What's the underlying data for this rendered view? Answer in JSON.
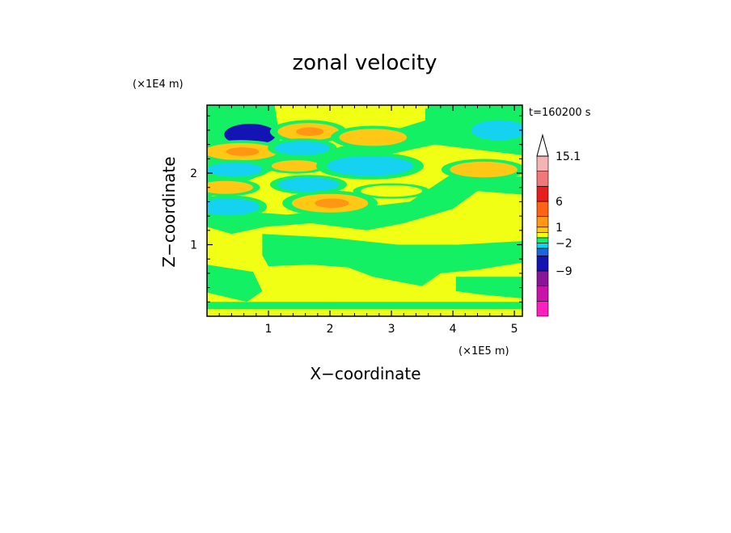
{
  "chart_data": {
    "type": "heatmap",
    "title": "zonal velocity",
    "xlabel": "X−coordinate",
    "ylabel": "Z−coordinate",
    "x_scale_label": "(×1E5 m)",
    "y_scale_label": "(×1E4 m)",
    "time_label": "t=160200 s",
    "xlim": [
      0,
      5.13
    ],
    "ylim": [
      0,
      2.95
    ],
    "x_ticks": [
      1,
      2,
      3,
      4,
      5
    ],
    "x_tick_labels": [
      "1",
      "2",
      "3",
      "4",
      "5"
    ],
    "y_ticks": [
      1,
      2
    ],
    "y_tick_labels": [
      "1",
      "2"
    ],
    "colorbar": {
      "levels": [
        {
          "color": "#ff1ebe"
        },
        {
          "color": "#c814aa"
        },
        {
          "color": "#8c1496"
        },
        {
          "color": "#1414b4"
        },
        {
          "color": "#1e64dc"
        },
        {
          "color": "#14d2f0"
        },
        {
          "color": "#14f064"
        },
        {
          "color": "#f0ff14"
        },
        {
          "color": "#ffc814"
        },
        {
          "color": "#ff9614"
        },
        {
          "color": "#ff6414"
        },
        {
          "color": "#e61e1e"
        },
        {
          "color": "#f07878"
        },
        {
          "color": "#f5b4b4"
        }
      ],
      "labels": [
        {
          "text": "15.1",
          "value": 15.1
        },
        {
          "text": "6",
          "value": 6
        },
        {
          "text": "1",
          "value": 1
        },
        {
          "text": "−2",
          "value": -2
        },
        {
          "text": "−9",
          "value": -9
        }
      ]
    },
    "features": [
      {
        "x": 0.7,
        "z": 2.54,
        "rx": 0.42,
        "rz": 0.15,
        "v": -10
      },
      {
        "x": 0.55,
        "z": 2.3,
        "rx": 0.6,
        "rz": 0.12,
        "v": 4
      },
      {
        "x": 0.45,
        "z": 2.05,
        "rx": 0.45,
        "rz": 0.1,
        "v": -3
      },
      {
        "x": 0.3,
        "z": 1.8,
        "rx": 0.45,
        "rz": 0.09,
        "v": 3
      },
      {
        "x": 0.35,
        "z": 1.53,
        "rx": 0.5,
        "rz": 0.12,
        "v": -3
      },
      {
        "x": 1.65,
        "z": 2.58,
        "rx": 0.5,
        "rz": 0.12,
        "v": 4
      },
      {
        "x": 2.7,
        "z": 2.5,
        "rx": 0.55,
        "rz": 0.12,
        "v": 3
      },
      {
        "x": 1.55,
        "z": 2.35,
        "rx": 0.45,
        "rz": 0.1,
        "v": -3
      },
      {
        "x": 1.45,
        "z": 2.1,
        "rx": 0.4,
        "rz": 0.08,
        "v": 3
      },
      {
        "x": 2.65,
        "z": 2.1,
        "rx": 0.7,
        "rz": 0.14,
        "v": -3
      },
      {
        "x": 1.65,
        "z": 1.84,
        "rx": 0.5,
        "rz": 0.1,
        "v": -3
      },
      {
        "x": 2.0,
        "z": 1.58,
        "rx": 0.62,
        "rz": 0.13,
        "v": 4
      },
      {
        "x": 3.0,
        "z": 1.75,
        "rx": 0.5,
        "rz": 0.08,
        "v": 2
      },
      {
        "x": 4.75,
        "z": 2.6,
        "rx": 0.45,
        "rz": 0.14,
        "v": -3
      },
      {
        "x": 4.5,
        "z": 2.05,
        "rx": 0.55,
        "rz": 0.11,
        "v": 3
      }
    ],
    "green_regions": [
      [
        [
          0.0,
          2.95
        ],
        [
          1.1,
          2.95
        ],
        [
          1.2,
          2.4
        ],
        [
          2.1,
          2.35
        ],
        [
          3.6,
          2.75
        ],
        [
          3.6,
          2.95
        ],
        [
          5.13,
          2.95
        ],
        [
          5.13,
          2.25
        ],
        [
          3.7,
          2.4
        ],
        [
          2.1,
          2.1
        ],
        [
          1.1,
          2.05
        ],
        [
          0.0,
          1.65
        ]
      ],
      [
        [
          0.0,
          1.5
        ],
        [
          1.3,
          1.42
        ],
        [
          2.8,
          1.55
        ],
        [
          3.3,
          1.6
        ],
        [
          4.0,
          2.0
        ],
        [
          5.13,
          1.95
        ],
        [
          5.13,
          1.7
        ],
        [
          4.4,
          1.75
        ],
        [
          4.0,
          1.5
        ],
        [
          3.2,
          1.3
        ],
        [
          2.6,
          1.2
        ],
        [
          1.7,
          1.3
        ],
        [
          0.95,
          1.25
        ],
        [
          0.4,
          1.15
        ],
        [
          0.0,
          1.25
        ]
      ],
      [
        [
          0.9,
          1.15
        ],
        [
          2.0,
          1.1
        ],
        [
          3.1,
          1.0
        ],
        [
          4.1,
          1.0
        ],
        [
          5.13,
          1.05
        ],
        [
          5.13,
          0.75
        ],
        [
          4.4,
          0.65
        ],
        [
          3.8,
          0.6
        ],
        [
          3.5,
          0.42
        ],
        [
          2.7,
          0.55
        ],
        [
          2.3,
          0.68
        ],
        [
          1.7,
          0.72
        ],
        [
          1.0,
          0.7
        ],
        [
          0.9,
          0.85
        ]
      ],
      [
        [
          0.0,
          0.72
        ],
        [
          0.75,
          0.62
        ],
        [
          0.9,
          0.35
        ],
        [
          0.65,
          0.2
        ],
        [
          0.0,
          0.33
        ]
      ],
      [
        [
          4.05,
          0.55
        ],
        [
          5.13,
          0.55
        ],
        [
          5.13,
          0.25
        ],
        [
          4.5,
          0.3
        ],
        [
          4.05,
          0.35
        ]
      ],
      [
        [
          0.0,
          0.2
        ],
        [
          5.13,
          0.2
        ],
        [
          5.13,
          0.1
        ],
        [
          0.0,
          0.1
        ]
      ],
      [
        [
          3.55,
          2.9
        ],
        [
          3.9,
          2.95
        ],
        [
          3.9,
          2.75
        ],
        [
          3.55,
          2.7
        ]
      ]
    ]
  }
}
